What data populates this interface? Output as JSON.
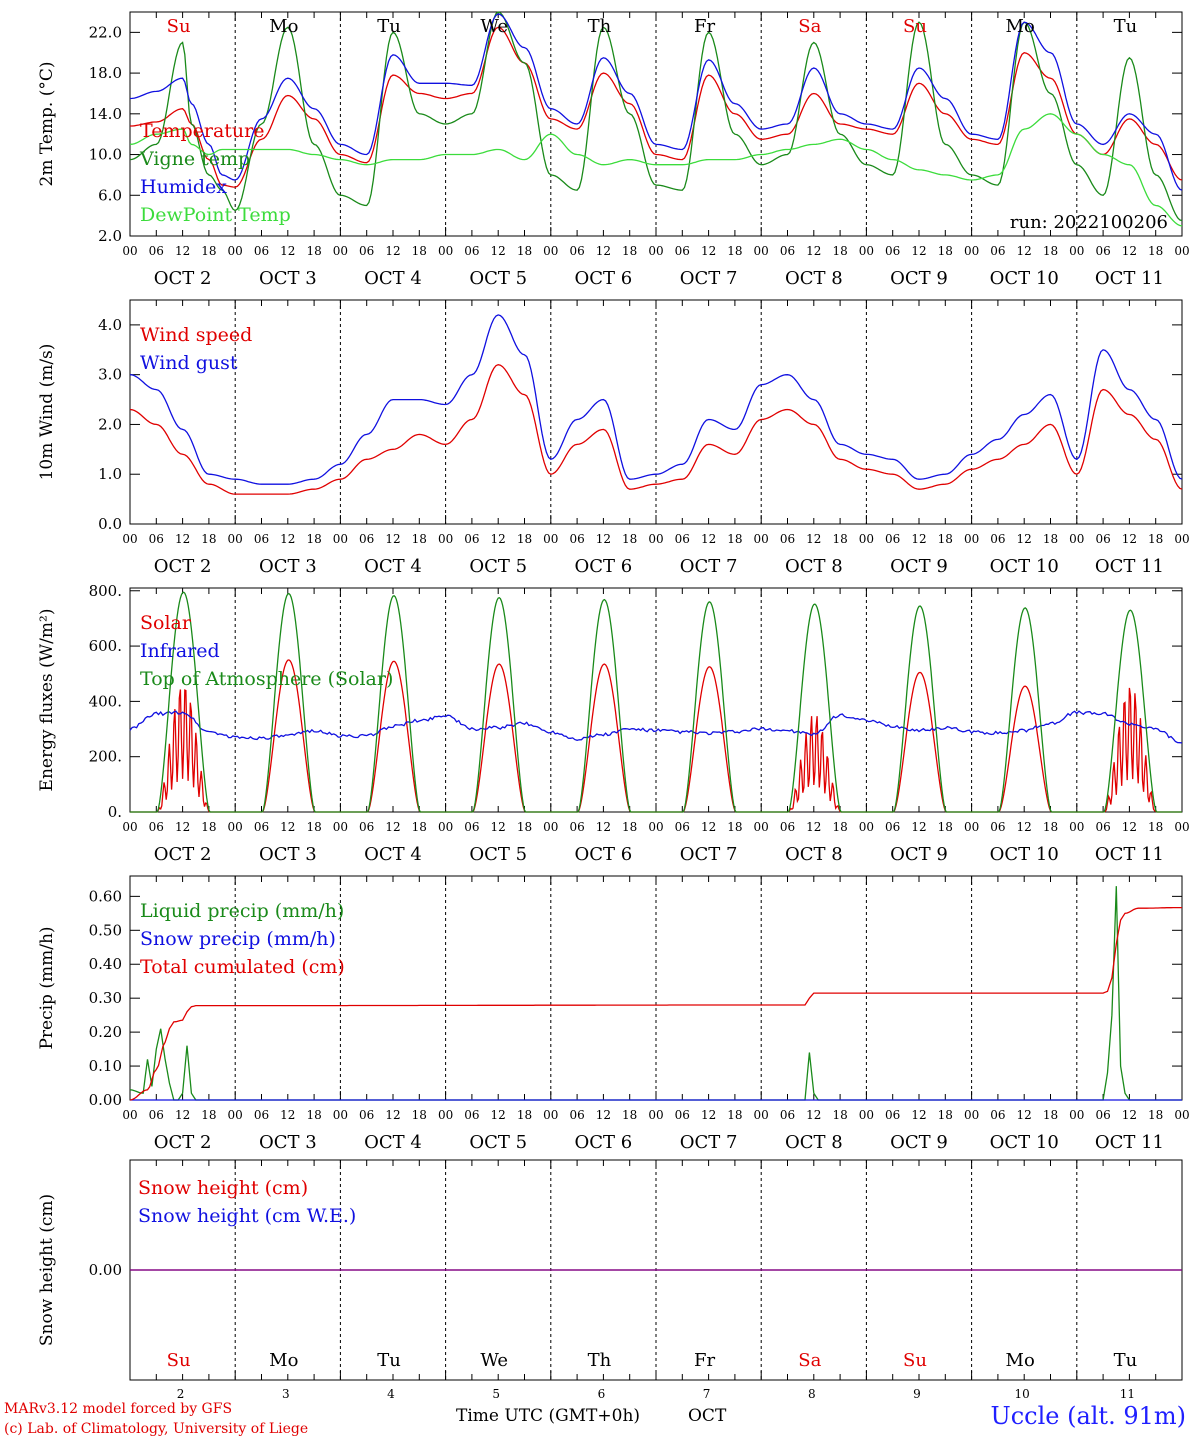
{
  "colors": {
    "red": "#e00000",
    "green": "#1a8a1a",
    "blue": "#1010e0",
    "lightgreen": "#3cdc3c",
    "purple": "#800080",
    "black": "#000000"
  },
  "top_days": [
    {
      "label": "Su",
      "weekend": true
    },
    {
      "label": "Mo",
      "weekend": false
    },
    {
      "label": "Tu",
      "weekend": false
    },
    {
      "label": "We",
      "weekend": false
    },
    {
      "label": "Th",
      "weekend": false
    },
    {
      "label": "Fr",
      "weekend": false
    },
    {
      "label": "Sa",
      "weekend": true
    },
    {
      "label": "Su",
      "weekend": true
    },
    {
      "label": "Mo",
      "weekend": false
    },
    {
      "label": "Tu",
      "weekend": false
    }
  ],
  "date_labels": [
    "OCT  2",
    "OCT  3",
    "OCT  4",
    "OCT  5",
    "OCT  6",
    "OCT  7",
    "OCT  8",
    "OCT  9",
    "OCT 10",
    "OCT 11"
  ],
  "hour_ticks": [
    "00",
    "06",
    "12",
    "18"
  ],
  "hour_end": "00",
  "bottom_day_numbers": [
    "2",
    "3",
    "4",
    "5",
    "6",
    "7",
    "8",
    "9",
    "10",
    "11"
  ],
  "footer": {
    "model_line": "MARv3.12 model forced by GFS",
    "lab_line": "(c) Lab. of Climatology, University of Liege",
    "time_axis_label": "Time UTC (GMT+0h)",
    "month": "OCT",
    "station": "Uccle (alt. 91m)"
  },
  "chart_data": [
    {
      "type": "line",
      "ylabel": "2m Temp. (°C)",
      "ylim": [
        2,
        24
      ],
      "yticks": [
        {
          "v": 2,
          "l": "2.0"
        },
        {
          "v": 6,
          "l": "6.0"
        },
        {
          "v": 10,
          "l": "10.0"
        },
        {
          "v": 14,
          "l": "14.0"
        },
        {
          "v": 18,
          "l": "18.0"
        },
        {
          "v": 22,
          "l": "22.0"
        }
      ],
      "x_unit": "hours since Oct 2 00 UTC",
      "annotation": "run: 2022100206",
      "series": [
        {
          "name": "Temperature",
          "color": "red",
          "x": [
            0,
            6,
            12,
            14,
            18,
            21,
            24,
            30,
            36,
            42,
            48,
            54,
            60,
            66,
            72,
            78,
            84,
            90,
            96,
            102,
            108,
            114,
            120,
            126,
            132,
            138,
            144,
            150,
            156,
            162,
            168,
            174,
            180,
            186,
            192,
            198,
            204,
            210,
            216,
            222,
            228,
            234,
            240
          ],
          "y": [
            12.8,
            13.2,
            14.5,
            13.0,
            9.5,
            7.0,
            6.8,
            11.5,
            15.8,
            13.5,
            10.0,
            9.2,
            17.8,
            16.0,
            15.5,
            16.0,
            22.5,
            19.0,
            13.5,
            12.5,
            18.0,
            15.0,
            10.0,
            9.5,
            17.8,
            14.0,
            11.5,
            12.0,
            16.0,
            13.0,
            12.5,
            12.0,
            17.0,
            14.0,
            11.5,
            11.0,
            20.0,
            17.5,
            12.0,
            10.0,
            13.5,
            11.0,
            7.5
          ]
        },
        {
          "name": "Vigne temp",
          "color": "green",
          "x": [
            0,
            6,
            12,
            14,
            18,
            21,
            24,
            30,
            36,
            42,
            48,
            54,
            60,
            66,
            72,
            78,
            84,
            90,
            96,
            102,
            108,
            114,
            120,
            126,
            132,
            138,
            144,
            150,
            156,
            162,
            168,
            174,
            180,
            186,
            192,
            198,
            204,
            210,
            216,
            222,
            228,
            234,
            240
          ],
          "y": [
            9.5,
            11.0,
            21.0,
            13.0,
            8.0,
            6.5,
            4.5,
            13.0,
            22.5,
            11.0,
            6.0,
            5.0,
            22.0,
            14.0,
            13.0,
            14.0,
            24.0,
            19.0,
            8.0,
            6.5,
            22.5,
            14.0,
            7.0,
            6.5,
            22.0,
            12.0,
            9.0,
            10.0,
            21.0,
            12.0,
            9.0,
            8.0,
            23.0,
            11.0,
            8.0,
            7.0,
            23.0,
            16.0,
            9.0,
            6.0,
            19.5,
            8.0,
            3.5
          ]
        },
        {
          "name": "Humidex",
          "color": "blue",
          "x": [
            0,
            6,
            12,
            14,
            18,
            21,
            24,
            30,
            36,
            42,
            48,
            54,
            60,
            66,
            72,
            78,
            84,
            90,
            96,
            102,
            108,
            114,
            120,
            126,
            132,
            138,
            144,
            150,
            156,
            162,
            168,
            174,
            180,
            186,
            192,
            198,
            204,
            210,
            216,
            222,
            228,
            234,
            240
          ],
          "y": [
            15.5,
            16.2,
            17.5,
            15.0,
            11.0,
            8.0,
            7.5,
            13.5,
            17.5,
            14.5,
            11.0,
            10.0,
            19.8,
            17.0,
            17.0,
            16.8,
            23.8,
            20.5,
            14.5,
            13.0,
            19.5,
            16.0,
            11.0,
            10.5,
            19.3,
            15.0,
            12.5,
            13.0,
            18.5,
            14.0,
            13.0,
            12.5,
            18.5,
            15.5,
            12.0,
            11.5,
            23.0,
            20.0,
            13.0,
            11.0,
            14.0,
            12.0,
            6.5
          ]
        },
        {
          "name": "DewPoint Temp",
          "color": "lightgreen",
          "x": [
            0,
            6,
            12,
            14,
            18,
            21,
            24,
            30,
            36,
            42,
            48,
            54,
            60,
            66,
            72,
            78,
            84,
            90,
            96,
            102,
            108,
            114,
            120,
            126,
            132,
            138,
            144,
            150,
            156,
            162,
            168,
            174,
            180,
            186,
            192,
            198,
            204,
            210,
            216,
            222,
            228,
            234,
            240
          ],
          "y": [
            11.0,
            12.0,
            12.5,
            11.0,
            10.0,
            10.5,
            10.5,
            10.5,
            10.5,
            10.0,
            9.5,
            9.0,
            9.5,
            9.5,
            10.0,
            10.0,
            10.5,
            9.5,
            12.0,
            10.0,
            9.0,
            9.5,
            9.0,
            9.0,
            9.5,
            9.5,
            10.0,
            10.5,
            11.0,
            11.5,
            10.5,
            9.5,
            8.5,
            8.0,
            7.5,
            8.0,
            12.5,
            14.0,
            12.0,
            10.0,
            9.0,
            5.0,
            3.0
          ]
        }
      ]
    },
    {
      "type": "line",
      "ylabel": "10m Wind (m/s)",
      "ylim": [
        0,
        4.5
      ],
      "yticks": [
        {
          "v": 0,
          "l": "0.0"
        },
        {
          "v": 1,
          "l": "1.0"
        },
        {
          "v": 2,
          "l": "2.0"
        },
        {
          "v": 3,
          "l": "3.0"
        },
        {
          "v": 4,
          "l": "4.0"
        }
      ],
      "x_unit": "hours since Oct 2 00 UTC",
      "series": [
        {
          "name": "Wind speed",
          "color": "red",
          "x": [
            0,
            6,
            12,
            18,
            24,
            30,
            36,
            42,
            48,
            54,
            60,
            66,
            72,
            78,
            84,
            90,
            96,
            102,
            108,
            114,
            120,
            126,
            132,
            138,
            144,
            150,
            156,
            162,
            168,
            174,
            180,
            186,
            192,
            198,
            204,
            210,
            216,
            222,
            228,
            234,
            240
          ],
          "y": [
            2.3,
            2.0,
            1.4,
            0.8,
            0.6,
            0.6,
            0.6,
            0.7,
            0.9,
            1.3,
            1.5,
            1.8,
            1.6,
            2.1,
            3.2,
            2.6,
            1.0,
            1.6,
            1.9,
            0.7,
            0.8,
            0.9,
            1.6,
            1.4,
            2.1,
            2.3,
            2.0,
            1.3,
            1.1,
            1.0,
            0.7,
            0.8,
            1.1,
            1.3,
            1.6,
            2.0,
            1.0,
            2.7,
            2.2,
            1.7,
            0.7
          ]
        },
        {
          "name": "Wind gust",
          "color": "blue",
          "x": [
            0,
            6,
            12,
            18,
            24,
            30,
            36,
            42,
            48,
            54,
            60,
            66,
            72,
            78,
            84,
            90,
            96,
            102,
            108,
            114,
            120,
            126,
            132,
            138,
            144,
            150,
            156,
            162,
            168,
            174,
            180,
            186,
            192,
            198,
            204,
            210,
            216,
            222,
            228,
            234,
            240
          ],
          "y": [
            3.0,
            2.7,
            1.9,
            1.0,
            0.9,
            0.8,
            0.8,
            0.9,
            1.2,
            1.8,
            2.5,
            2.5,
            2.4,
            3.0,
            4.2,
            3.4,
            1.3,
            2.1,
            2.5,
            0.9,
            1.0,
            1.2,
            2.1,
            1.9,
            2.8,
            3.0,
            2.5,
            1.6,
            1.4,
            1.3,
            0.9,
            1.0,
            1.4,
            1.7,
            2.2,
            2.6,
            1.3,
            3.5,
            2.7,
            2.1,
            0.9
          ]
        }
      ]
    },
    {
      "type": "line",
      "ylabel": "Energy fluxes (W/m²)",
      "ylim": [
        0,
        810
      ],
      "yticks": [
        {
          "v": 0,
          "l": "0."
        },
        {
          "v": 200,
          "l": "200."
        },
        {
          "v": 400,
          "l": "400."
        },
        {
          "v": 600,
          "l": "600."
        },
        {
          "v": 800,
          "l": "800."
        }
      ],
      "x_unit": "hours since Oct 2 00 UTC",
      "top_of_atmosphere_daily_peak": [
        795,
        790,
        782,
        775,
        768,
        760,
        752,
        745,
        738,
        730
      ],
      "solar_daily_peak": [
        480,
        550,
        545,
        535,
        535,
        525,
        360,
        505,
        455,
        470
      ],
      "series": [
        {
          "name": "Solar",
          "color": "red"
        },
        {
          "name": "Infrared",
          "color": "blue",
          "x": [
            0,
            6,
            12,
            18,
            24,
            30,
            36,
            42,
            48,
            54,
            60,
            66,
            72,
            78,
            84,
            90,
            96,
            102,
            108,
            114,
            120,
            126,
            132,
            138,
            144,
            150,
            156,
            162,
            168,
            174,
            180,
            186,
            192,
            198,
            204,
            210,
            216,
            222,
            228,
            234,
            240
          ],
          "y": [
            300,
            355,
            360,
            290,
            270,
            268,
            275,
            295,
            275,
            275,
            310,
            330,
            350,
            300,
            305,
            320,
            290,
            265,
            280,
            300,
            295,
            290,
            285,
            290,
            300,
            295,
            280,
            350,
            330,
            310,
            295,
            305,
            290,
            285,
            295,
            320,
            360,
            355,
            320,
            300,
            250
          ]
        },
        {
          "name": "Top of Atmosphere (Solar)",
          "color": "green"
        }
      ]
    },
    {
      "type": "line",
      "ylabel": "Precip (mm/h)",
      "ylim": [
        0,
        0.66
      ],
      "yticks": [
        {
          "v": 0,
          "l": "0.00"
        },
        {
          "v": 0.1,
          "l": "0.10"
        },
        {
          "v": 0.2,
          "l": "0.20"
        },
        {
          "v": 0.3,
          "l": "0.30"
        },
        {
          "v": 0.4,
          "l": "0.40"
        },
        {
          "v": 0.5,
          "l": "0.50"
        },
        {
          "v": 0.6,
          "l": "0.60"
        }
      ],
      "x_unit": "hours since Oct 2 00 UTC",
      "series": [
        {
          "name": "Liquid precip (mm/h)",
          "color": "green",
          "x": [
            0,
            3,
            4,
            5,
            6,
            7,
            8,
            9,
            10,
            11,
            12,
            13,
            14,
            15,
            16,
            154,
            155,
            156,
            157,
            222,
            223,
            224,
            225,
            226,
            227,
            228,
            240
          ],
          "y": [
            0.03,
            0.02,
            0.12,
            0.04,
            0.15,
            0.21,
            0.12,
            0.05,
            0.0,
            0.0,
            0.02,
            0.16,
            0.02,
            0.0,
            0.0,
            0.0,
            0.14,
            0.02,
            0.0,
            0.0,
            0.08,
            0.25,
            0.63,
            0.1,
            0.02,
            0.0,
            0.0
          ]
        },
        {
          "name": "Snow precip (mm/h)",
          "color": "blue",
          "x": [
            0,
            240
          ],
          "y": [
            0,
            0
          ]
        },
        {
          "name": "Total cumulated (cm)",
          "color": "red",
          "x": [
            0,
            4,
            6,
            8,
            9,
            10,
            12,
            13,
            14,
            15,
            154,
            155,
            156,
            222,
            223,
            224,
            225,
            226,
            227,
            230,
            240
          ],
          "y": [
            0.0,
            0.03,
            0.09,
            0.17,
            0.21,
            0.23,
            0.235,
            0.26,
            0.275,
            0.278,
            0.28,
            0.3,
            0.315,
            0.315,
            0.32,
            0.36,
            0.46,
            0.53,
            0.55,
            0.565,
            0.567
          ]
        }
      ]
    },
    {
      "type": "line",
      "ylabel": "Snow height (cm)",
      "ylim": [
        -1,
        1
      ],
      "yticks": [
        {
          "v": 0,
          "l": "0.00"
        }
      ],
      "x_unit": "hours since Oct 2 00 UTC",
      "series": [
        {
          "name": "Snow height (cm)",
          "color": "red",
          "x": [
            0,
            240
          ],
          "y": [
            0,
            0
          ]
        },
        {
          "name": "Snow height (cm W.E.)",
          "color": "blue",
          "x": [
            0,
            240
          ],
          "y": [
            0,
            0
          ]
        }
      ]
    }
  ]
}
